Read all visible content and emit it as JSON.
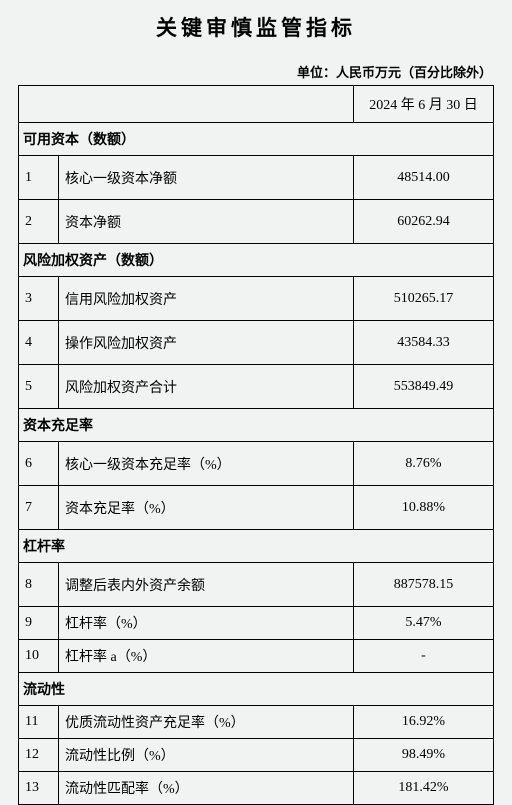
{
  "title": "关键审慎监管指标",
  "unit": "单位：人民币万元（百分比除外）",
  "date": "2024 年 6 月 30 日",
  "sections": {
    "s1": "可用资本（数额）",
    "s2": "风险加权资产（数额）",
    "s3": "资本充足率",
    "s4": "杠杆率",
    "s5": "流动性"
  },
  "rows": {
    "r1": {
      "n": "1",
      "item": "核心一级资本净额",
      "value": "48514.00"
    },
    "r2": {
      "n": "2",
      "item": "资本净额",
      "value": "60262.94"
    },
    "r3": {
      "n": "3",
      "item": "信用风险加权资产",
      "value": "510265.17"
    },
    "r4": {
      "n": "4",
      "item": "操作风险加权资产",
      "value": "43584.33"
    },
    "r5": {
      "n": "5",
      "item": "风险加权资产合计",
      "value": "553849.49"
    },
    "r6": {
      "n": "6",
      "item": "核心一级资本充足率（%）",
      "value": "8.76%"
    },
    "r7": {
      "n": "7",
      "item": "资本充足率（%）",
      "value": "10.88%"
    },
    "r8": {
      "n": "8",
      "item": "调整后表内外资产余额",
      "value": "887578.15"
    },
    "r9": {
      "n": "9",
      "item": "杠杆率（%）",
      "value": "5.47%"
    },
    "r10": {
      "n": "10",
      "item": "杠杆率 a（%）",
      "value": "-"
    },
    "r11": {
      "n": "11",
      "item": "优质流动性资产充足率（%）",
      "value": "16.92%"
    },
    "r12": {
      "n": "12",
      "item": "流动性比例（%）",
      "value": "98.49%"
    },
    "r13": {
      "n": "13",
      "item": "流动性匹配率（%）",
      "value": "181.42%"
    }
  },
  "colors": {
    "background": "#f1f3f2",
    "border": "#000000",
    "text": "#000000"
  }
}
